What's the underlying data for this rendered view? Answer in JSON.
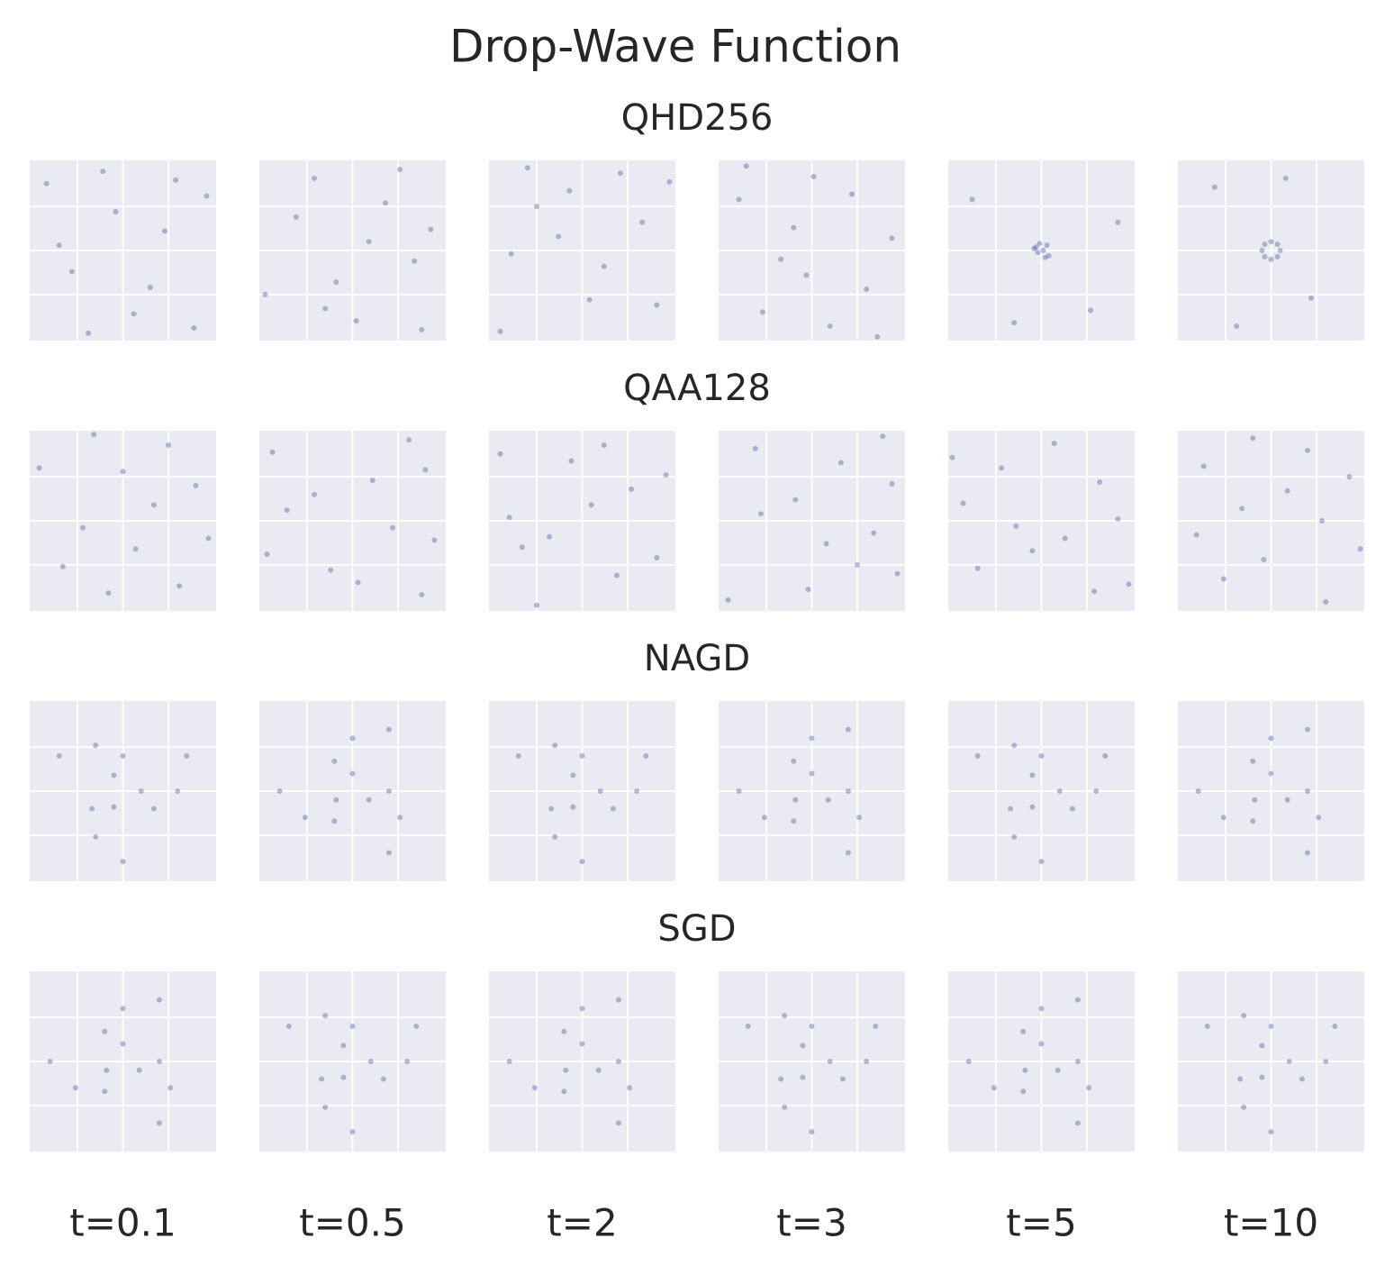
{
  "chart_data": {
    "type": "scatter",
    "title": "Drop-Wave Function",
    "color": "#3b3b8f",
    "xlim": [
      -5.12,
      5.12
    ],
    "ylim": [
      -5.12,
      5.12
    ],
    "xticks": [
      -2.5,
      0,
      2.5
    ],
    "yticks": [
      -2.5,
      0,
      2.5
    ],
    "grid": true,
    "columns": [
      "t=0.1",
      "t=0.5",
      "t=2",
      "t=3",
      "t=5",
      "t=10"
    ],
    "rows": [
      {
        "name": "QHD256",
        "panels": [
          {
            "x": [
              -4.2,
              -2.8,
              -1.1,
              0.6,
              2.3,
              3.9,
              -3.5,
              -0.4,
              1.5,
              4.6,
              -1.9,
              2.9
            ],
            "y": [
              3.8,
              -1.2,
              4.5,
              -3.6,
              1.1,
              -4.4,
              0.3,
              2.2,
              -2.1,
              3.1,
              -4.7,
              4.0
            ]
          },
          {
            "x": [
              -4.8,
              -2.1,
              0.2,
              1.8,
              3.4,
              -3.1,
              -0.9,
              2.6,
              4.3,
              -1.5,
              0.9,
              3.8
            ],
            "y": [
              -2.5,
              4.1,
              -4.0,
              2.7,
              -0.6,
              1.9,
              -1.8,
              4.6,
              1.2,
              -3.3,
              0.5,
              -4.5
            ]
          },
          {
            "x": [
              4.1,
              -3.9,
              -0.7,
              2.1,
              -2.5,
              0.4,
              3.3,
              -4.5,
              1.2,
              -1.3,
              4.8,
              -3.0
            ],
            "y": [
              -3.1,
              -0.2,
              3.4,
              4.4,
              2.5,
              -2.8,
              1.6,
              -4.6,
              -0.9,
              0.8,
              3.9,
              4.7
            ]
          },
          {
            "x": [
              -1.0,
              3.0,
              -4.0,
              1.0,
              -2.7,
              4.4,
              0.1,
              -3.6,
              2.2,
              -0.3,
              3.6,
              -1.7
            ],
            "y": [
              1.3,
              -2.2,
              2.9,
              -4.3,
              -3.5,
              0.7,
              4.2,
              4.8,
              3.2,
              -1.4,
              -4.9,
              -0.5
            ]
          },
          {
            "x": [
              0.1,
              -0.3,
              0.4,
              -0.2,
              0.3,
              -0.1,
              0.2,
              -0.4,
              -3.8,
              2.7,
              -1.5,
              4.2
            ],
            "y": [
              0.0,
              0.2,
              -0.3,
              -0.1,
              0.3,
              0.4,
              -0.4,
              0.1,
              2.9,
              -3.4,
              -4.1,
              1.6
            ]
          },
          {
            "x": [
              0.5,
              0,
              -0.5,
              0,
              0.35,
              -0.35,
              0.35,
              -0.35,
              -3.1,
              2.2,
              0.8,
              -1.9
            ],
            "y": [
              0,
              0.5,
              0,
              -0.5,
              0.35,
              0.35,
              -0.35,
              -0.35,
              3.6,
              -2.7,
              4.1,
              -4.3
            ]
          }
        ]
      },
      {
        "name": "QAA128",
        "panels": [
          {
            "x": [
              2.5,
              -4.6,
              0.7,
              -2.2,
              4.0,
              -0.8,
              1.7,
              -3.3,
              3.1,
              -1.6,
              0.0,
              4.7
            ],
            "y": [
              4.3,
              3.0,
              -1.6,
              -0.4,
              2.0,
              -4.1,
              0.9,
              -2.6,
              -3.7,
              4.9,
              2.8,
              -1.0
            ]
          },
          {
            "x": [
              3.8,
              -1.2,
              4.5,
              -3.6,
              1.1,
              -4.4,
              0.3,
              2.2,
              -2.1,
              3.1,
              -4.7,
              4.0
            ],
            "y": [
              -4.2,
              -2.8,
              -1.1,
              0.6,
              2.3,
              3.9,
              -3.5,
              -0.4,
              1.5,
              4.6,
              -1.9,
              2.9
            ]
          },
          {
            "x": [
              -2.5,
              4.1,
              -4.0,
              2.7,
              -0.6,
              1.9,
              -1.8,
              4.6,
              1.2,
              -3.3,
              0.5,
              -4.5
            ],
            "y": [
              -4.8,
              -2.1,
              0.2,
              1.8,
              3.4,
              -3.1,
              -0.9,
              2.6,
              4.3,
              -1.5,
              0.9,
              3.8
            ]
          },
          {
            "x": [
              -3.1,
              -0.2,
              3.4,
              4.4,
              2.5,
              -2.8,
              1.6,
              -4.6,
              -0.9,
              0.8,
              3.9,
              4.7
            ],
            "y": [
              4.1,
              -3.9,
              -0.7,
              2.1,
              -2.5,
              0.4,
              3.3,
              -4.5,
              1.2,
              -1.3,
              4.8,
              -3.0
            ]
          },
          {
            "x": [
              1.3,
              -2.2,
              2.9,
              -4.3,
              -3.5,
              0.7,
              4.2,
              4.8,
              3.2,
              -1.4,
              -4.9,
              -0.5
            ],
            "y": [
              -1.0,
              3.0,
              -4.0,
              1.0,
              -2.7,
              4.4,
              0.1,
              -3.6,
              2.2,
              -0.3,
              3.6,
              -1.7
            ]
          },
          {
            "x": [
              4.3,
              3.0,
              -1.6,
              -0.4,
              2.0,
              -4.1,
              0.9,
              -2.6,
              -3.7,
              4.9,
              2.8,
              -1.0
            ],
            "y": [
              2.5,
              -4.6,
              0.7,
              -2.2,
              4.0,
              -0.8,
              1.7,
              -3.3,
              3.1,
              -1.6,
              0.0,
              4.7
            ]
          }
        ]
      },
      {
        "name": "NAGD",
        "panels": [
          {
            "x": [
              1,
              -0.5,
              -0.5,
              0,
              -1.7,
              1.7,
              3,
              -1.5,
              -1.5,
              0,
              3.5,
              -3.5
            ],
            "y": [
              0,
              0.9,
              -0.9,
              2,
              -1,
              -1,
              0,
              2.6,
              -2.6,
              -4,
              2,
              2
            ]
          },
          {
            "x": [
              0,
              0.9,
              -0.9,
              2,
              -1,
              -1,
              0,
              2.6,
              -2.6,
              -4,
              2,
              2
            ],
            "y": [
              1,
              -0.5,
              -0.5,
              0,
              1.7,
              -1.7,
              3,
              -1.5,
              -1.5,
              0,
              3.5,
              -3.5
            ]
          },
          {
            "x": [
              1,
              -0.5,
              -0.5,
              0,
              -1.7,
              1.7,
              3,
              -1.5,
              -1.5,
              0,
              3.5,
              -3.5
            ],
            "y": [
              0,
              0.9,
              -0.9,
              2,
              -1,
              -1,
              0,
              2.6,
              -2.6,
              -4,
              2,
              2
            ]
          },
          {
            "x": [
              0,
              0.9,
              -0.9,
              2,
              -1,
              -1,
              0,
              2.6,
              -2.6,
              -4,
              2,
              2
            ],
            "y": [
              1,
              -0.5,
              -0.5,
              0,
              1.7,
              -1.7,
              3,
              -1.5,
              -1.5,
              0,
              3.5,
              -3.5
            ]
          },
          {
            "x": [
              1,
              -0.5,
              -0.5,
              0,
              -1.7,
              1.7,
              3,
              -1.5,
              -1.5,
              0,
              3.5,
              -3.5
            ],
            "y": [
              0,
              0.9,
              -0.9,
              2,
              -1,
              -1,
              0,
              2.6,
              -2.6,
              -4,
              2,
              2
            ]
          },
          {
            "x": [
              0,
              0.9,
              -0.9,
              2,
              -1,
              -1,
              0,
              2.6,
              -2.6,
              -4,
              2,
              2
            ],
            "y": [
              1,
              -0.5,
              -0.5,
              0,
              1.7,
              -1.7,
              3,
              -1.5,
              -1.5,
              0,
              3.5,
              -3.5
            ]
          }
        ]
      },
      {
        "name": "SGD",
        "panels": [
          {
            "x": [
              0,
              0.9,
              -0.9,
              2,
              -1,
              -1,
              0,
              2.6,
              -2.6,
              -4,
              2,
              2
            ],
            "y": [
              1,
              -0.5,
              -0.5,
              0,
              1.7,
              -1.7,
              3,
              -1.5,
              -1.5,
              0,
              3.5,
              -3.5
            ]
          },
          {
            "x": [
              1,
              -0.5,
              -0.5,
              0,
              -1.7,
              1.7,
              3,
              -1.5,
              -1.5,
              0,
              3.5,
              -3.5
            ],
            "y": [
              0,
              0.9,
              -0.9,
              2,
              -1,
              -1,
              0,
              2.6,
              -2.6,
              -4,
              2,
              2
            ]
          },
          {
            "x": [
              0,
              0.9,
              -0.9,
              2,
              -1,
              -1,
              0,
              2.6,
              -2.6,
              -4,
              2,
              2
            ],
            "y": [
              1,
              -0.5,
              -0.5,
              0,
              1.7,
              -1.7,
              3,
              -1.5,
              -1.5,
              0,
              3.5,
              -3.5
            ]
          },
          {
            "x": [
              1,
              -0.5,
              -0.5,
              0,
              -1.7,
              1.7,
              3,
              -1.5,
              -1.5,
              0,
              3.5,
              -3.5
            ],
            "y": [
              0,
              0.9,
              -0.9,
              2,
              -1,
              -1,
              0,
              2.6,
              -2.6,
              -4,
              2,
              2
            ]
          },
          {
            "x": [
              0,
              0.9,
              -0.9,
              2,
              -1,
              -1,
              0,
              2.6,
              -2.6,
              -4,
              2,
              2
            ],
            "y": [
              1,
              -0.5,
              -0.5,
              0,
              1.7,
              -1.7,
              3,
              -1.5,
              -1.5,
              0,
              3.5,
              -3.5
            ]
          },
          {
            "x": [
              1,
              -0.5,
              -0.5,
              0,
              -1.7,
              1.7,
              3,
              -1.5,
              -1.5,
              0,
              3.5,
              -3.5
            ],
            "y": [
              0,
              0.9,
              -0.9,
              2,
              -1,
              -1,
              0,
              2.6,
              -2.6,
              -4,
              2,
              2
            ]
          }
        ]
      }
    ]
  }
}
